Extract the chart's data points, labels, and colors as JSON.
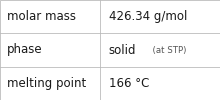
{
  "rows": [
    {
      "label": "molar mass",
      "value_parts": [
        {
          "text": "426.34 g/mol",
          "style": "normal",
          "fontsize": 8.5
        }
      ]
    },
    {
      "label": "phase",
      "value_parts": [
        {
          "text": "solid",
          "style": "normal",
          "fontsize": 8.5
        },
        {
          "text": "  (at STP)",
          "style": "small",
          "fontsize": 6.2
        }
      ]
    },
    {
      "label": "melting point",
      "value_parts": [
        {
          "text": "166 °C",
          "style": "normal",
          "fontsize": 8.5
        }
      ]
    }
  ],
  "bg_color": "#ffffff",
  "border_color": "#bbbbbb",
  "text_color": "#1a1a1a",
  "small_text_color": "#555555",
  "label_fontsize": 8.5,
  "col_split": 0.455,
  "fig_width": 2.2,
  "fig_height": 1.0,
  "dpi": 100
}
